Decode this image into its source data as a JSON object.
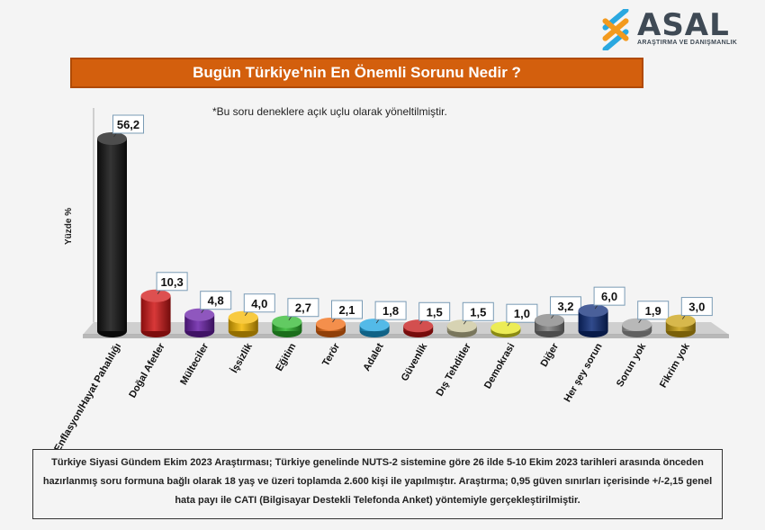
{
  "brand": {
    "name": "ASAL",
    "tagline": "ARAŞTIRMA VE DANIŞMANLIK"
  },
  "chart_data": {
    "type": "bar",
    "title": "Bugün Türkiye'nin En Önemli Sorunu Nedir ?",
    "subtitle": "*Bu soru deneklere açık uçlu olarak yöneltilmiştir.",
    "xlabel": "",
    "ylabel": "Yüzde  %",
    "ylim": [
      0,
      60
    ],
    "grid": false,
    "legend": "none",
    "categories": [
      "Enflasyon/Hayat Pahalılığı",
      "Doğal Afetler",
      "Mülteciler",
      "İşsizlik",
      "Eğitim",
      "Terör",
      "Adalet",
      "Güvenlik",
      "Dış Tehditler",
      "Demokrasi",
      "Diğer",
      "Her şey sorun",
      "Sorun yok",
      "Fikrim yok"
    ],
    "values": [
      56.2,
      10.3,
      4.8,
      4.0,
      2.7,
      2.1,
      1.8,
      1.5,
      1.5,
      1.0,
      3.2,
      6.0,
      1.9,
      3.0
    ],
    "value_labels": [
      "56,2",
      "10,3",
      "4,8",
      "4,0",
      "2,7",
      "2,1",
      "1,8",
      "1,5",
      "1,5",
      "1,0",
      "3,2",
      "6,0",
      "1,9",
      "3,0"
    ],
    "colors": [
      "#111111",
      "#d11616",
      "#6a1fa8",
      "#f5b800",
      "#2db82d",
      "#f06a10",
      "#1aa3e0",
      "#c41414",
      "#c9c49a",
      "#e6e61e",
      "#808080",
      "#0d2b78",
      "#a0a0a0",
      "#c9a010"
    ]
  },
  "footer": {
    "text": "Türkiye Siyasi Gündem Ekim 2023 Araştırması; Türkiye genelinde NUTS-2 sistemine göre 26 ilde 5-10 Ekim 2023 tarihleri arasında önceden hazırlanmış soru formuna bağlı olarak 18 yaş ve üzeri toplamda 2.600 kişi ile yapılmıştır. Araştırma; 0,95 güven sınırları içerisinde +/-2,15 genel hata payı ile CATI (Bilgisayar Destekli Telefonda Anket) yöntemiyle gerçekleştirilmiştir."
  }
}
